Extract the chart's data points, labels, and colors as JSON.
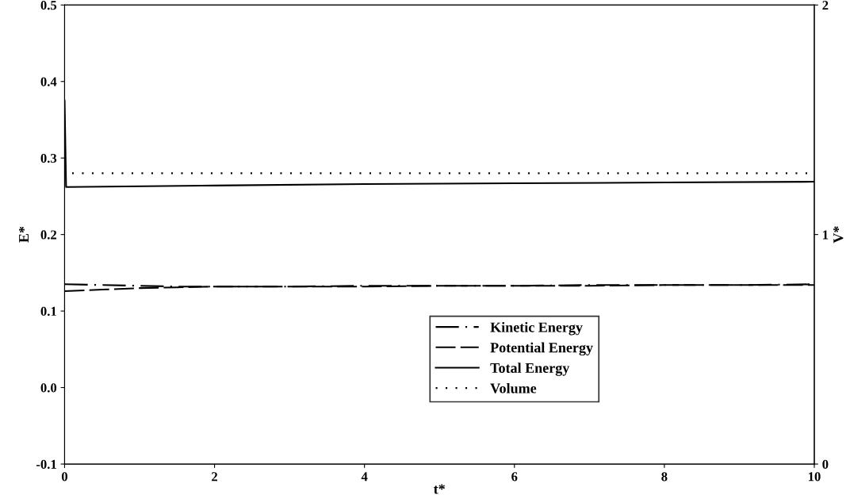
{
  "chart_data": {
    "type": "line",
    "xlabel": "t*",
    "ylabel": "E*",
    "y2label": "V*",
    "xlim": [
      0,
      10
    ],
    "xticks": [
      0,
      2,
      4,
      6,
      8,
      10
    ],
    "ylim": [
      -0.1,
      0.5
    ],
    "yticks": [
      {
        "value": -0.1,
        "label": "-0.1"
      },
      {
        "value": 0.0,
        "label": "0.0"
      },
      0.1,
      0.2,
      0.3,
      0.4,
      0.5
    ],
    "y2lim": [
      0,
      2
    ],
    "y2ticks": [
      0,
      1,
      2
    ],
    "legend": "bottom",
    "grid": false,
    "marker": "none",
    "series": [
      {
        "name": "Kinetic Energy",
        "color": "#000000",
        "line_style": "dashdot",
        "x": [
          0,
          0.5,
          1,
          1.5,
          2,
          3,
          4,
          5,
          6,
          7,
          8,
          9,
          10
        ],
        "values": [
          0.135,
          0.134,
          0.133,
          0.132,
          0.132,
          0.132,
          0.133,
          0.133,
          0.133,
          0.134,
          0.134,
          0.134,
          0.135
        ]
      },
      {
        "name": "Potential Energy",
        "color": "#000000",
        "line_style": "dashed",
        "x": [
          0,
          0.5,
          1,
          1.5,
          2,
          3,
          4,
          5,
          6,
          7,
          8,
          9,
          10
        ],
        "values": [
          0.126,
          0.128,
          0.13,
          0.131,
          0.132,
          0.132,
          0.132,
          0.133,
          0.133,
          0.133,
          0.134,
          0.134,
          0.134
        ]
      },
      {
        "name": "Total Energy",
        "color": "#000000",
        "line_style": "solid",
        "x": [
          0,
          0.02,
          2,
          4,
          6,
          8,
          10
        ],
        "values": [
          0.375,
          0.262,
          0.264,
          0.266,
          0.267,
          0.268,
          0.269
        ]
      },
      {
        "name": "Volume",
        "color": "#000000",
        "line_style": "dotted",
        "axis": "y2",
        "x": [
          0.1,
          10
        ],
        "values": [
          1.267,
          1.267
        ]
      }
    ]
  }
}
